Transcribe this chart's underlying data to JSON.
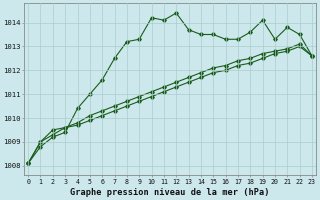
{
  "title": "Graphe pression niveau de la mer (hPa)",
  "bg_color": "#cce8ec",
  "grid_color": "#aacccc",
  "line_color": "#1a5c1a",
  "x_labels": [
    "0",
    "1",
    "2",
    "3",
    "4",
    "5",
    "6",
    "7",
    "8",
    "9",
    "10",
    "11",
    "12",
    "13",
    "14",
    "15",
    "16",
    "17",
    "18",
    "19",
    "20",
    "21",
    "22",
    "23"
  ],
  "xlim": [
    -0.3,
    23.3
  ],
  "ylim": [
    1007.6,
    1014.8
  ],
  "yticks": [
    1008,
    1009,
    1010,
    1011,
    1012,
    1013,
    1014
  ],
  "series1": [
    1008.1,
    1008.8,
    1009.2,
    1009.4,
    1010.4,
    1011.0,
    1011.6,
    1012.5,
    1013.2,
    1013.3,
    1014.2,
    1014.1,
    1014.4,
    1013.7,
    1013.5,
    1013.5,
    1013.3,
    1013.3,
    1013.6,
    1014.1,
    1013.3,
    1013.8,
    1013.5,
    1012.6
  ],
  "series2": [
    1008.1,
    1009.0,
    1009.3,
    1009.6,
    1009.7,
    1009.9,
    1010.1,
    1010.3,
    1010.5,
    1010.7,
    1010.9,
    1011.1,
    1011.3,
    1011.5,
    1011.7,
    1011.9,
    1012.0,
    1012.2,
    1012.3,
    1012.5,
    1012.7,
    1012.8,
    1013.0,
    1012.6
  ],
  "series3": [
    1008.1,
    1009.0,
    1009.5,
    1009.6,
    1009.8,
    1010.1,
    1010.3,
    1010.5,
    1010.7,
    1010.9,
    1011.1,
    1011.3,
    1011.5,
    1011.7,
    1011.9,
    1012.1,
    1012.2,
    1012.4,
    1012.5,
    1012.7,
    1012.8,
    1012.9,
    1013.1,
    1012.6
  ]
}
